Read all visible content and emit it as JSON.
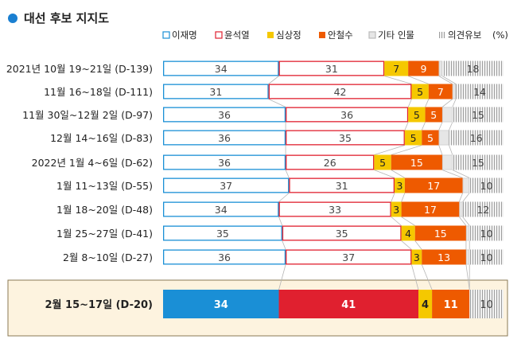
{
  "chart_data": {
    "type": "bar",
    "stacked": true,
    "orientation": "horizontal",
    "title": "대선 후보 지지도",
    "unit_note": "(%)",
    "legend_position": "top-right",
    "categories": [
      "2021년 10월 19~21일 (D-139)",
      "11월 16~18일 (D-111)",
      "11월 30일~12월 2일 (D-97)",
      "12월 14~16일 (D-83)",
      "2022년 1월 4~6일 (D-62)",
      "1월 11~13일 (D-55)",
      "1월 18~20일 (D-48)",
      "1월 25~27일 (D-41)",
      "2월 8~10일 (D-27)",
      "2월 15~17일 (D-20)"
    ],
    "highlight_category_index": 9,
    "series": [
      {
        "name": "이재명",
        "color": "#1a8fd6",
        "values": [
          34,
          31,
          36,
          36,
          36,
          37,
          34,
          35,
          36,
          34
        ]
      },
      {
        "name": "윤석열",
        "color": "#e0202f",
        "values": [
          31,
          42,
          36,
          35,
          26,
          31,
          33,
          35,
          37,
          41
        ]
      },
      {
        "name": "심상정",
        "color": "#f5c800",
        "values": [
          7,
          5,
          5,
          5,
          5,
          3,
          3,
          4,
          3,
          4
        ]
      },
      {
        "name": "안철수",
        "color": "#ee5a00",
        "values": [
          9,
          7,
          5,
          5,
          15,
          17,
          17,
          15,
          13,
          11
        ]
      },
      {
        "name": "기타 인물",
        "color": "#e6e6e6",
        "values": [
          1,
          1,
          3,
          3,
          3,
          2,
          1,
          1,
          1,
          0
        ]
      },
      {
        "name": "의견유보",
        "color": "#bdbdbd",
        "values": [
          18,
          14,
          15,
          16,
          15,
          10,
          12,
          10,
          10,
          10
        ]
      }
    ],
    "show_value_labels_for": [
      "이재명",
      "윤석열",
      "심상정",
      "안철수",
      "의견유보"
    ]
  }
}
